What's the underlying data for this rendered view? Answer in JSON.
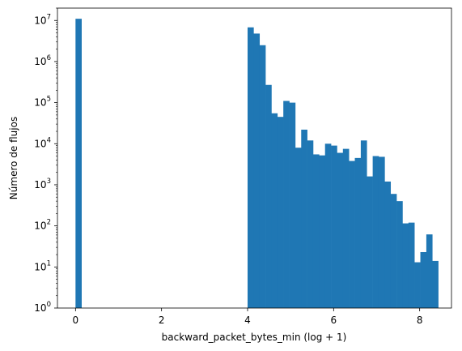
{
  "chart_data": {
    "type": "bar",
    "xlabel": "backward_packet_bytes_min (log + 1)",
    "ylabel": "Número de flujos",
    "y_scale": "log",
    "ylim": [
      1,
      20000000
    ],
    "xlim": [
      -0.42,
      8.74
    ],
    "grid": false,
    "bar_color": "#1f77b4",
    "bin_width": 0.1385,
    "x_ticks": [
      0,
      2,
      4,
      6,
      8
    ],
    "y_tick_exponents": [
      0,
      1,
      2,
      3,
      4,
      5,
      6,
      7
    ],
    "y_tick_base": "10",
    "bins": [
      {
        "x": 0.0,
        "value": 11000000
      },
      {
        "x": 4.0,
        "value": 6800000
      },
      {
        "x": 4.1385,
        "value": 4800000
      },
      {
        "x": 4.277,
        "value": 2500000
      },
      {
        "x": 4.4155,
        "value": 270000
      },
      {
        "x": 4.554,
        "value": 55000
      },
      {
        "x": 4.6925,
        "value": 45000
      },
      {
        "x": 4.831,
        "value": 110000
      },
      {
        "x": 4.9695,
        "value": 100000
      },
      {
        "x": 5.108,
        "value": 8000
      },
      {
        "x": 5.2465,
        "value": 22000
      },
      {
        "x": 5.385,
        "value": 12000
      },
      {
        "x": 5.5235,
        "value": 5500
      },
      {
        "x": 5.662,
        "value": 5200
      },
      {
        "x": 5.8005,
        "value": 10000
      },
      {
        "x": 5.939,
        "value": 9000
      },
      {
        "x": 6.0775,
        "value": 6000
      },
      {
        "x": 6.216,
        "value": 7500
      },
      {
        "x": 6.3545,
        "value": 3800
      },
      {
        "x": 6.493,
        "value": 4500
      },
      {
        "x": 6.6315,
        "value": 12000
      },
      {
        "x": 6.77,
        "value": 1600
      },
      {
        "x": 6.9085,
        "value": 5000
      },
      {
        "x": 7.047,
        "value": 4800
      },
      {
        "x": 7.1855,
        "value": 1200
      },
      {
        "x": 7.324,
        "value": 600
      },
      {
        "x": 7.4625,
        "value": 400
      },
      {
        "x": 7.601,
        "value": 115
      },
      {
        "x": 7.7395,
        "value": 120
      },
      {
        "x": 7.878,
        "value": 13
      },
      {
        "x": 8.0165,
        "value": 23
      },
      {
        "x": 8.155,
        "value": 62
      },
      {
        "x": 8.2935,
        "value": 14
      }
    ]
  }
}
